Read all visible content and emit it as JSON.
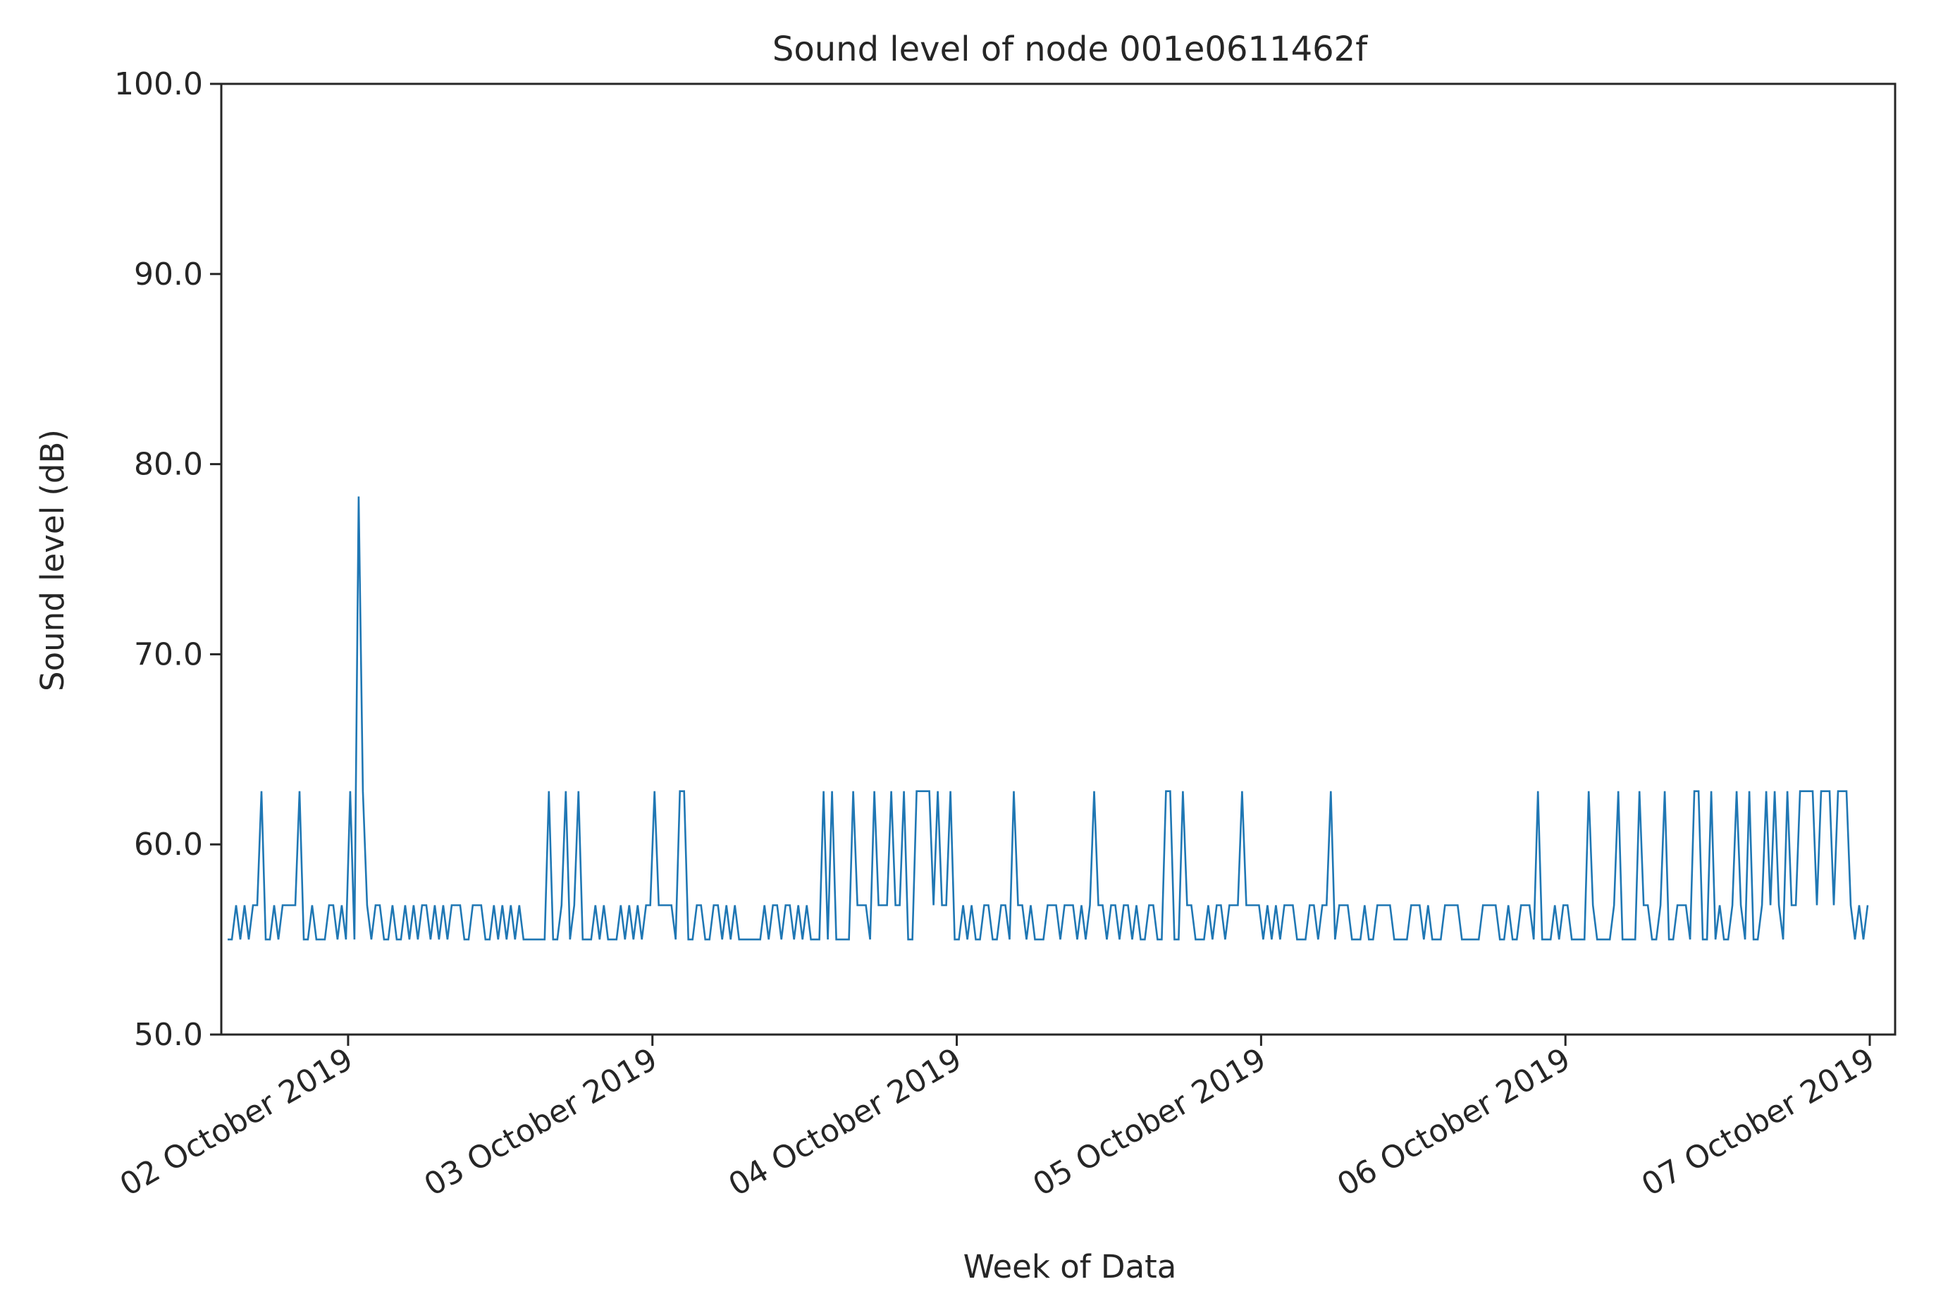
{
  "chart_data": {
    "type": "line",
    "title": "Sound level of node 001e0611462f",
    "xlabel": "Week of Data",
    "ylabel": "Sound level (dB)",
    "ylim": [
      50.0,
      100.0
    ],
    "yticks": [
      50.0,
      60.0,
      70.0,
      80.0,
      90.0,
      100.0
    ],
    "ytick_labels": [
      "50.0",
      "60.0",
      "70.0",
      "80.0",
      "90.0",
      "100.0"
    ],
    "xlim": [
      "2019-10-01T14:00",
      "2019-10-07T02:00"
    ],
    "xticks": [
      "2019-10-02",
      "2019-10-03",
      "2019-10-04",
      "2019-10-05",
      "2019-10-06",
      "2019-10-07"
    ],
    "xtick_labels": [
      "02 October 2019",
      "03 October 2019",
      "04 October 2019",
      "05 October 2019",
      "06 October 2019",
      "07 October 2019"
    ],
    "grid": false,
    "legend": "none",
    "series_color": "#1f77b4",
    "data_start": "2019-10-01T14:30",
    "data_end": "2019-10-07T00:00",
    "levels_db": {
      "base_low": 55.0,
      "base_high": 56.8,
      "burst": 62.8
    },
    "peak": {
      "x": "2019-10-02T00:45",
      "y": 78.3
    },
    "burst_windows": [
      [
        "2019-10-02T00:30",
        "2019-10-02T01:45"
      ],
      [
        "2019-10-02T15:00",
        "2019-10-02T21:00"
      ],
      [
        "2019-10-03T00:00",
        "2019-10-03T02:30"
      ],
      [
        "2019-10-03T12:00",
        "2019-10-03T16:00"
      ],
      [
        "2019-10-03T18:00",
        "2019-10-04T00:00"
      ],
      [
        "2019-10-04T03:00",
        "2019-10-04T05:00"
      ],
      [
        "2019-10-04T14:00",
        "2019-10-04T18:00"
      ],
      [
        "2019-10-05T20:00",
        "2019-10-05T23:00"
      ],
      [
        "2019-10-06T02:00",
        "2019-10-06T08:00"
      ],
      [
        "2019-10-06T10:00",
        "2019-10-06T15:00"
      ],
      [
        "2019-10-06T17:00",
        "2019-10-06T22:30"
      ]
    ],
    "dense_windows": [
      [
        "2019-10-03T17:30",
        "2019-10-03T23:30"
      ],
      [
        "2019-10-06T16:00",
        "2019-10-06T21:30"
      ]
    ],
    "low_gaps": [
      [
        "2019-10-01T14:00",
        "2019-10-01T15:00"
      ],
      [
        "2019-10-03T08:00",
        "2019-10-03T09:00"
      ],
      [
        "2019-10-04T00:30",
        "2019-10-04T01:30"
      ],
      [
        "2019-10-06T19:00",
        "2019-10-06T21:00"
      ]
    ]
  }
}
